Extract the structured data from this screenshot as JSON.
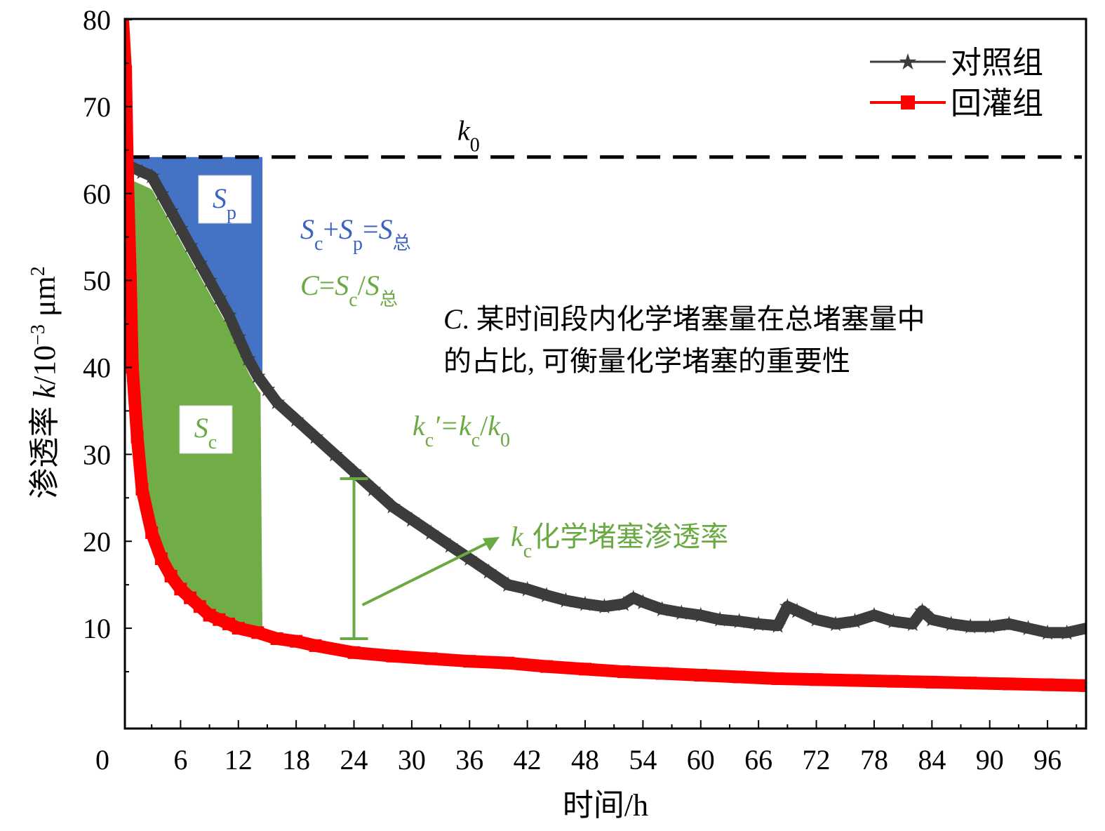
{
  "chart_data": {
    "type": "line",
    "xlabel": "时间/h",
    "ylabel_prefix": "渗透率 ",
    "ylabel_var": "k",
    "ylabel_unit": "/10",
    "ylabel_exp": "−3",
    "ylabel_unit2": " μm",
    "ylabel_exp2": "2",
    "xlim": [
      0,
      100
    ],
    "ylim": [
      0,
      80
    ],
    "xticks": [
      0,
      6,
      12,
      18,
      24,
      30,
      36,
      42,
      48,
      54,
      60,
      66,
      72,
      78,
      84,
      90,
      96
    ],
    "yticks": [
      10,
      20,
      30,
      40,
      50,
      60,
      70,
      80
    ],
    "x_minor_step": 3,
    "y_minor_step": 5,
    "legend_position": "top-right",
    "series": [
      {
        "name": "对照组",
        "color": "#3c3c3c",
        "marker": "star",
        "points": [
          [
            0,
            63.5
          ],
          [
            1,
            63
          ],
          [
            2,
            62.5
          ],
          [
            3,
            62
          ],
          [
            4,
            60
          ],
          [
            5,
            58
          ],
          [
            6,
            56
          ],
          [
            7,
            54
          ],
          [
            8,
            52
          ],
          [
            9,
            50
          ],
          [
            10,
            48
          ],
          [
            11,
            46
          ],
          [
            12,
            43.5
          ],
          [
            13,
            41
          ],
          [
            14,
            39
          ],
          [
            15,
            37.5
          ],
          [
            16,
            36
          ],
          [
            18,
            34
          ],
          [
            20,
            32
          ],
          [
            22,
            30
          ],
          [
            24,
            28
          ],
          [
            26,
            26
          ],
          [
            28,
            24
          ],
          [
            30,
            22.5
          ],
          [
            32,
            21
          ],
          [
            34,
            19.5
          ],
          [
            36,
            18
          ],
          [
            38,
            16.5
          ],
          [
            40,
            15
          ],
          [
            42,
            14.5
          ],
          [
            44,
            13.8
          ],
          [
            46,
            13.2
          ],
          [
            48,
            12.8
          ],
          [
            50,
            12.5
          ],
          [
            52,
            12.8
          ],
          [
            53,
            13.5
          ],
          [
            54,
            13
          ],
          [
            56,
            12.2
          ],
          [
            58,
            11.8
          ],
          [
            60,
            11.5
          ],
          [
            62,
            11
          ],
          [
            64,
            10.8
          ],
          [
            66,
            10.5
          ],
          [
            68,
            10.3
          ],
          [
            69,
            12.5
          ],
          [
            70,
            12
          ],
          [
            72,
            11
          ],
          [
            74,
            10.5
          ],
          [
            76,
            10.8
          ],
          [
            78,
            11.5
          ],
          [
            80,
            10.8
          ],
          [
            82,
            10.5
          ],
          [
            83,
            12
          ],
          [
            84,
            11
          ],
          [
            86,
            10.5
          ],
          [
            88,
            10.2
          ],
          [
            90,
            10.2
          ],
          [
            92,
            10.5
          ],
          [
            94,
            10
          ],
          [
            96,
            9.5
          ],
          [
            98,
            9.5
          ],
          [
            100,
            10
          ]
        ]
      },
      {
        "name": "回灌组",
        "color": "#ff0000",
        "marker": "square",
        "points": [
          [
            0,
            80
          ],
          [
            0.3,
            74
          ],
          [
            0.5,
            62
          ],
          [
            0.8,
            50
          ],
          [
            1,
            40
          ],
          [
            1.5,
            32
          ],
          [
            2,
            26
          ],
          [
            3,
            21
          ],
          [
            4,
            18
          ],
          [
            5,
            16
          ],
          [
            6,
            14.5
          ],
          [
            7,
            13.5
          ],
          [
            8,
            12.5
          ],
          [
            9,
            11.5
          ],
          [
            10,
            11
          ],
          [
            11,
            10.5
          ],
          [
            12,
            10
          ],
          [
            14,
            9.5
          ],
          [
            16,
            8.8
          ],
          [
            18,
            8.5
          ],
          [
            20,
            8
          ],
          [
            24,
            7.2
          ],
          [
            28,
            6.8
          ],
          [
            32,
            6.5
          ],
          [
            36,
            6.2
          ],
          [
            40,
            6
          ],
          [
            44,
            5.6
          ],
          [
            48,
            5.3
          ],
          [
            52,
            5
          ],
          [
            56,
            4.8
          ],
          [
            60,
            4.6
          ],
          [
            64,
            4.4
          ],
          [
            68,
            4.2
          ],
          [
            72,
            4.1
          ],
          [
            76,
            4
          ],
          [
            80,
            3.9
          ],
          [
            84,
            3.8
          ],
          [
            88,
            3.7
          ],
          [
            92,
            3.6
          ],
          [
            96,
            3.5
          ],
          [
            100,
            3.4
          ]
        ]
      }
    ],
    "k0_value": 64.2,
    "k0_label": "k",
    "k0_sub": "0",
    "regions": {
      "x_end": 14.5,
      "Sp": {
        "label": "S",
        "sub": "p",
        "color": "#4472c4"
      },
      "Sc": {
        "label": "S",
        "sub": "c",
        "color": "#70ad47"
      }
    },
    "errorbar": {
      "x": 24,
      "y_low": 8.8,
      "y_high": 27.2,
      "color": "#6aaa42"
    },
    "annotations": {
      "formula1": {
        "a": "S",
        "a_sub": "c",
        "plus": "+",
        "b": "S",
        "b_sub": "p",
        "eq": "=",
        "c": "S",
        "c_sub": "总"
      },
      "formula2": {
        "a": "C",
        "eq": "=",
        "b": "S",
        "b_sub": "c",
        "slash": "/",
        "c": "S",
        "c_sub": "总"
      },
      "formula3": {
        "a": "k",
        "a_sub": "c",
        "prime_eq": "′=",
        "b": "k",
        "b_sub": "c",
        "slash": "/",
        "c": "k",
        "c_sub": "0"
      },
      "kc_label": {
        "k": "k",
        "sub": "c",
        "text": "化学堵塞渗透率"
      },
      "desc_line1_italic": "C",
      "desc_line1": ". 某时间段内化学堵塞量在总堵塞量中",
      "desc_line2": "的占比, 可衡量化学堵塞的重要性"
    }
  }
}
